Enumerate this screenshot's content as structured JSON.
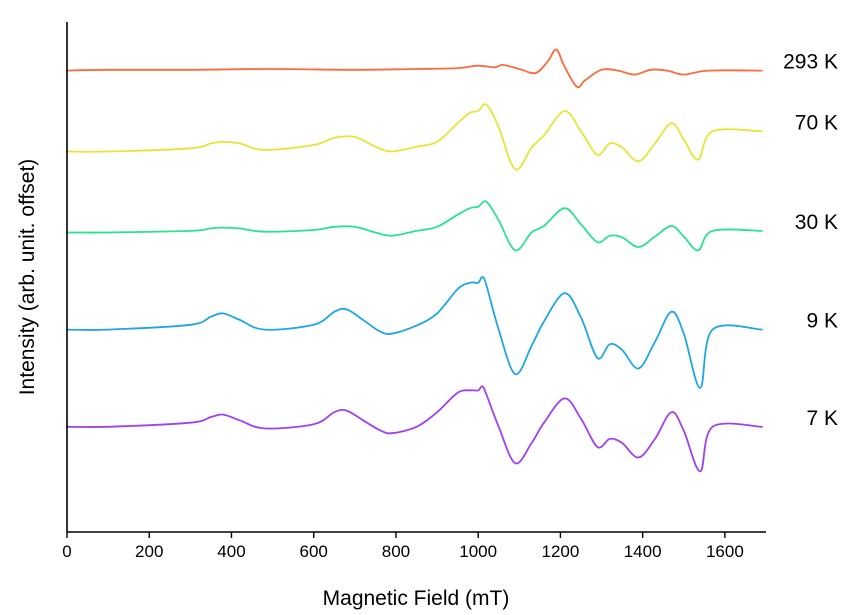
{
  "chart_data": {
    "type": "line",
    "title": "",
    "xlabel": "Magnetic Field (mT)",
    "ylabel": "Intensity (arb. unit. offset)",
    "xlim": [
      0,
      1700
    ],
    "x_ticks": [
      "0",
      "200",
      "400",
      "600",
      "800",
      "1000",
      "1200",
      "1400",
      "1600"
    ],
    "y_ticks_shown": false,
    "grid": false,
    "legend": "labels at right end of each trace",
    "ylim": [
      -0.7,
      5.6
    ],
    "series": [
      {
        "name": "293 K",
        "color": "#ff6a3d",
        "offset": 5,
        "x": [
          0,
          100,
          300,
          500,
          700,
          850,
          950,
          1000,
          1040,
          1060,
          1100,
          1140,
          1170,
          1190,
          1210,
          1240,
          1260,
          1300,
          1340,
          1380,
          1420,
          1460,
          1500,
          1560,
          1690
        ],
        "y": [
          0,
          0.01,
          0.01,
          0.02,
          0.01,
          0.02,
          0.03,
          0.06,
          0.04,
          0.07,
          0.02,
          -0.03,
          0.12,
          0.26,
          0.05,
          -0.2,
          -0.12,
          0.01,
          0.0,
          -0.05,
          0.01,
          0.0,
          -0.05,
          0.0,
          0.0
        ]
      },
      {
        "name": "70 K",
        "color": "#e8e436",
        "offset": 4,
        "x": [
          0,
          100,
          300,
          350,
          380,
          420,
          480,
          600,
          650,
          700,
          750,
          790,
          850,
          900,
          950,
          980,
          1000,
          1020,
          1050,
          1090,
          1130,
          1160,
          1210,
          1250,
          1290,
          1320,
          1350,
          1390,
          1430,
          1470,
          1500,
          1535,
          1570,
          1690
        ],
        "y": [
          0,
          0.0,
          0.04,
          0.1,
          0.12,
          0.1,
          0.02,
          0.08,
          0.17,
          0.18,
          0.06,
          0.0,
          0.06,
          0.12,
          0.35,
          0.48,
          0.5,
          0.58,
          0.3,
          -0.22,
          0.05,
          0.2,
          0.5,
          0.25,
          -0.04,
          0.1,
          0.05,
          -0.12,
          0.1,
          0.35,
          0.15,
          -0.1,
          0.25,
          0.25
        ]
      },
      {
        "name": "30 K",
        "color": "#28e38f",
        "offset": 3,
        "x": [
          0,
          100,
          300,
          350,
          380,
          420,
          480,
          600,
          650,
          700,
          750,
          790,
          850,
          900,
          950,
          980,
          1000,
          1020,
          1050,
          1090,
          1130,
          1160,
          1210,
          1250,
          1290,
          1320,
          1350,
          1390,
          1430,
          1470,
          1500,
          1535,
          1570,
          1690
        ],
        "y": [
          0,
          0.0,
          0.02,
          0.05,
          0.06,
          0.05,
          0.01,
          0.03,
          0.07,
          0.07,
          0.0,
          -0.04,
          0.02,
          0.07,
          0.22,
          0.3,
          0.32,
          0.38,
          0.15,
          -0.22,
          0.0,
          0.08,
          0.3,
          0.1,
          -0.12,
          -0.04,
          -0.06,
          -0.18,
          -0.05,
          0.08,
          -0.05,
          -0.22,
          0.02,
          0.02
        ]
      },
      {
        "name": "9 K",
        "color": "#1ea6e6",
        "offset": 1.8,
        "x": [
          0,
          100,
          300,
          350,
          380,
          420,
          480,
          600,
          650,
          680,
          720,
          760,
          790,
          850,
          900,
          950,
          980,
          1000,
          1010,
          1020,
          1050,
          1090,
          1130,
          1160,
          1210,
          1250,
          1290,
          1320,
          1350,
          1390,
          1430,
          1470,
          1500,
          1540,
          1570,
          1690
        ],
        "y": [
          0,
          0.0,
          0.06,
          0.16,
          0.2,
          0.12,
          0.0,
          0.06,
          0.22,
          0.25,
          0.12,
          -0.02,
          -0.05,
          0.05,
          0.2,
          0.5,
          0.58,
          0.58,
          0.65,
          0.55,
          0.0,
          -0.55,
          -0.2,
          0.1,
          0.45,
          0.15,
          -0.35,
          -0.18,
          -0.25,
          -0.48,
          -0.15,
          0.22,
          -0.05,
          -0.72,
          0.0,
          0.0
        ]
      },
      {
        "name": "7 K",
        "color": "#a040f0",
        "offset": 0.6,
        "x": [
          0,
          100,
          300,
          350,
          380,
          420,
          480,
          600,
          650,
          680,
          720,
          760,
          790,
          850,
          900,
          950,
          980,
          1000,
          1010,
          1020,
          1050,
          1090,
          1130,
          1160,
          1210,
          1250,
          1290,
          1320,
          1350,
          1390,
          1430,
          1470,
          1500,
          1540,
          1570,
          1690
        ],
        "y": [
          0,
          0.0,
          0.05,
          0.12,
          0.15,
          0.08,
          -0.02,
          0.03,
          0.18,
          0.2,
          0.08,
          -0.04,
          -0.08,
          0.0,
          0.18,
          0.42,
          0.45,
          0.45,
          0.5,
          0.4,
          0.0,
          -0.45,
          -0.2,
          0.05,
          0.35,
          0.1,
          -0.25,
          -0.15,
          -0.2,
          -0.38,
          -0.15,
          0.18,
          -0.05,
          -0.55,
          0.0,
          0.0
        ]
      }
    ]
  }
}
